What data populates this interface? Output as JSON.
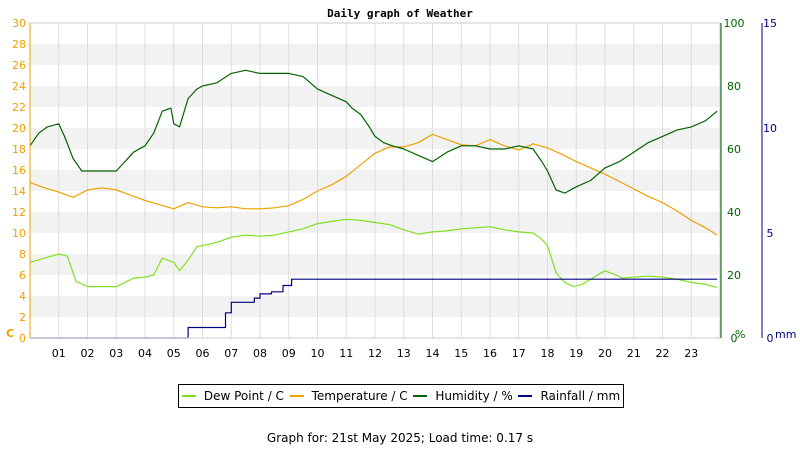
{
  "chart_data": {
    "type": "line",
    "title": "Daily graph of Weather",
    "x_ticks": [
      "01",
      "02",
      "03",
      "04",
      "05",
      "06",
      "07",
      "08",
      "09",
      "10",
      "11",
      "12",
      "13",
      "14",
      "15",
      "16",
      "17",
      "18",
      "19",
      "20",
      "21",
      "22",
      "23"
    ],
    "xlim": [
      0,
      24
    ],
    "axes": {
      "left": {
        "unit_label": "C",
        "ylim": [
          0,
          30
        ],
        "ticks": [
          0,
          2,
          4,
          6,
          8,
          10,
          12,
          14,
          16,
          18,
          20,
          22,
          24,
          26,
          28,
          30
        ],
        "color": "#f0a000"
      },
      "right1": {
        "unit_label": "%",
        "ylim": [
          0,
          100
        ],
        "ticks": [
          0,
          20,
          40,
          60,
          80,
          100
        ],
        "color": "#006400"
      },
      "right2": {
        "unit_label": "mm",
        "ylim": [
          0,
          15
        ],
        "ticks": [
          0,
          5,
          10,
          15
        ],
        "color": "#000080"
      }
    },
    "grid": true,
    "legend_position": "bottom",
    "series": [
      {
        "name": "Dew Point / C",
        "axis": "left",
        "color": "#80e020",
        "x": [
          0,
          0.5,
          1,
          1.3,
          1.6,
          2,
          2.5,
          3,
          3.3,
          3.6,
          4,
          4.3,
          4.6,
          5,
          5.2,
          5.5,
          5.8,
          6,
          6.5,
          7,
          7.5,
          8,
          8.5,
          9,
          9.5,
          10,
          10.5,
          11,
          11.5,
          12,
          12.5,
          13,
          13.5,
          14,
          14.5,
          15,
          15.5,
          16,
          16.5,
          17,
          17.5,
          17.8,
          18,
          18.3,
          18.6,
          18.9,
          19.2,
          19.5,
          20,
          20.3,
          20.6,
          21,
          21.5,
          22,
          22.5,
          23,
          23.5,
          23.9
        ],
        "y": [
          7.2,
          7.6,
          8.0,
          7.8,
          5.4,
          4.9,
          4.9,
          4.9,
          5.3,
          5.7,
          5.8,
          6.0,
          7.6,
          7.2,
          6.4,
          7.4,
          8.7,
          8.8,
          9.1,
          9.6,
          9.8,
          9.7,
          9.8,
          10.1,
          10.4,
          10.9,
          11.1,
          11.3,
          11.2,
          11.0,
          10.8,
          10.3,
          9.9,
          10.1,
          10.2,
          10.4,
          10.5,
          10.6,
          10.3,
          10.1,
          10.0,
          9.4,
          8.8,
          6.2,
          5.3,
          4.9,
          5.1,
          5.6,
          6.4,
          6.1,
          5.7,
          5.8,
          5.9,
          5.8,
          5.6,
          5.3,
          5.1,
          4.8
        ]
      },
      {
        "name": "Temperature / C",
        "axis": "left",
        "color": "#f0a000",
        "x": [
          0,
          0.5,
          1,
          1.5,
          2,
          2.5,
          3,
          3.5,
          4,
          4.5,
          5,
          5.5,
          6,
          6.5,
          7,
          7.5,
          8,
          8.5,
          9,
          9.5,
          10,
          10.5,
          11,
          11.5,
          12,
          12.5,
          13,
          13.5,
          14,
          14.5,
          15,
          15.5,
          16,
          16.5,
          17,
          17.5,
          18,
          18.5,
          19,
          19.5,
          20,
          20.5,
          21,
          21.5,
          22,
          22.5,
          23,
          23.5,
          23.9
        ],
        "y": [
          14.8,
          14.3,
          13.9,
          13.4,
          14.1,
          14.3,
          14.1,
          13.6,
          13.1,
          12.7,
          12.3,
          12.9,
          12.5,
          12.4,
          12.5,
          12.3,
          12.3,
          12.4,
          12.6,
          13.2,
          14.0,
          14.6,
          15.4,
          16.5,
          17.6,
          18.2,
          18.2,
          18.6,
          19.4,
          18.9,
          18.4,
          18.3,
          18.9,
          18.3,
          17.9,
          18.5,
          18.1,
          17.5,
          16.8,
          16.2,
          15.6,
          14.9,
          14.2,
          13.5,
          12.9,
          12.1,
          11.2,
          10.5,
          9.8
        ]
      },
      {
        "name": "Humidity / %",
        "axis": "right1",
        "color": "#006400",
        "x": [
          0,
          0.3,
          0.6,
          1,
          1.2,
          1.5,
          1.8,
          2,
          2.5,
          3,
          3.3,
          3.6,
          4,
          4.3,
          4.6,
          4.9,
          5,
          5.2,
          5.5,
          5.8,
          6,
          6.5,
          7,
          7.5,
          8,
          8.5,
          9,
          9.5,
          10,
          10.5,
          11,
          11.2,
          11.5,
          11.8,
          12,
          12.3,
          12.6,
          13,
          13.5,
          14,
          14.5,
          15,
          15.5,
          16,
          16.5,
          17,
          17.5,
          17.8,
          18,
          18.3,
          18.6,
          19,
          19.5,
          20,
          20.5,
          21,
          21.5,
          22,
          22.5,
          23,
          23.5,
          23.9
        ],
        "y": [
          61,
          65,
          67,
          68,
          64,
          57,
          53,
          53,
          53,
          53,
          56,
          59,
          61,
          65,
          72,
          73,
          68,
          67,
          76,
          79,
          80,
          81,
          84,
          85,
          84,
          84,
          84,
          83,
          79,
          77,
          75,
          73,
          71,
          67,
          64,
          62,
          61,
          60,
          58,
          56,
          59,
          61,
          61,
          60,
          60,
          61,
          60,
          56,
          53,
          47,
          46,
          48,
          50,
          54,
          56,
          59,
          62,
          64,
          66,
          67,
          69,
          72
        ]
      },
      {
        "name": "Rainfall / mm",
        "axis": "right2",
        "color": "#000080",
        "step": true,
        "x": [
          0,
          5.5,
          6.6,
          6.8,
          7,
          7.5,
          7.8,
          8,
          8.4,
          8.8,
          9.1,
          23.9
        ],
        "y": [
          0,
          0.5,
          0.5,
          1.2,
          1.7,
          1.7,
          1.9,
          2.1,
          2.2,
          2.5,
          2.8,
          2.8
        ]
      }
    ]
  },
  "legend": [
    {
      "label": "Dew Point / C",
      "color": "#80e020"
    },
    {
      "label": "Temperature / C",
      "color": "#f0a000"
    },
    {
      "label": "Humidity / %",
      "color": "#006400"
    },
    {
      "label": "Rainfall / mm",
      "color": "#000080"
    }
  ],
  "footer": "Graph for: 21st May 2025; Load time: 0.17 s"
}
